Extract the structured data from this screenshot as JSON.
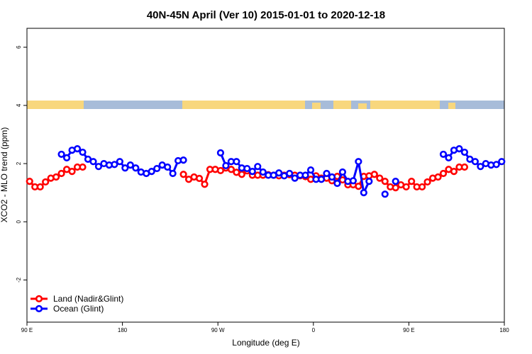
{
  "chart_data": {
    "type": "line",
    "title": "40N-45N April (Ver 10)   2015-01-01 to 2020-12-18",
    "x_label": "Longitude (deg E)",
    "y_label": "XCO2 - MLO trend (ppm)",
    "x": [
      92.5,
      97.5,
      102.5,
      107.5,
      112.5,
      117.5,
      122.5,
      127.5,
      132.5,
      137.5,
      142.5,
      147.5,
      152.5,
      157.5,
      162.5,
      167.5,
      172.5,
      177.5,
      182.5,
      187.5,
      192.5,
      197.5,
      202.5,
      207.5,
      212.5,
      217.5,
      222.5,
      227.5,
      232.5,
      237.5,
      242.5,
      247.5,
      252.5,
      257.5,
      262.5,
      267.5,
      272.5,
      277.5,
      282.5,
      287.5,
      292.5,
      297.5,
      302.5,
      307.5,
      312.5,
      317.5,
      322.5,
      327.5,
      332.5,
      337.5,
      342.5,
      347.5,
      352.5,
      357.5,
      362.5,
      367.5,
      372.5,
      377.5,
      382.5,
      387.5,
      392.5,
      397.5,
      402.5,
      407.5,
      412.5,
      417.5,
      422.5,
      427.5,
      432.5,
      437.5,
      442.5,
      447.5,
      452.5,
      457.5,
      462.5,
      467.5,
      472.5,
      477.5,
      482.5,
      487.5,
      492.5,
      497.5,
      502.5,
      507.5,
      512.5,
      517.5,
      522.5,
      527.5,
      532.5,
      537.5
    ],
    "series": [
      {
        "name": "Land (Nadir&Glint)",
        "color": "#ff0000",
        "values": [
          1.39,
          1.2,
          1.2,
          1.37,
          1.5,
          1.54,
          1.66,
          1.8,
          1.73,
          1.88,
          1.88,
          null,
          null,
          null,
          null,
          null,
          null,
          null,
          null,
          null,
          null,
          null,
          null,
          null,
          null,
          null,
          null,
          null,
          null,
          1.63,
          1.46,
          1.54,
          1.49,
          1.29,
          1.8,
          1.8,
          1.76,
          1.85,
          1.8,
          1.7,
          1.63,
          1.75,
          1.6,
          1.6,
          1.6,
          1.62,
          1.6,
          1.58,
          1.6,
          1.62,
          1.6,
          1.58,
          1.55,
          1.46,
          1.58,
          1.5,
          1.5,
          1.41,
          1.56,
          1.44,
          1.27,
          1.27,
          1.22,
          1.56,
          1.58,
          1.63,
          1.5,
          1.39,
          1.2,
          1.17,
          1.27,
          1.2,
          1.39,
          1.2,
          1.2,
          1.37,
          1.5,
          1.54,
          1.66,
          1.8,
          1.73,
          1.88,
          1.88,
          null,
          null,
          null,
          null,
          null,
          null,
          null
        ]
      },
      {
        "name": "Ocean (Glint)",
        "color": "#0000ff",
        "values": [
          null,
          null,
          null,
          null,
          null,
          null,
          2.32,
          2.2,
          2.46,
          2.51,
          2.39,
          2.15,
          2.07,
          1.9,
          2.0,
          1.95,
          1.97,
          2.07,
          1.85,
          1.95,
          1.85,
          1.71,
          1.66,
          1.73,
          1.83,
          1.95,
          1.88,
          1.66,
          2.1,
          2.12,
          null,
          null,
          null,
          null,
          null,
          null,
          2.37,
          1.93,
          2.07,
          2.07,
          1.85,
          1.83,
          1.73,
          1.9,
          1.71,
          1.6,
          1.6,
          1.68,
          1.58,
          1.66,
          1.5,
          1.6,
          1.6,
          1.78,
          1.46,
          1.46,
          1.66,
          1.54,
          1.32,
          1.71,
          1.39,
          1.41,
          2.07,
          1.0,
          1.39,
          null,
          null,
          0.95,
          null,
          1.39,
          null,
          null,
          null,
          null,
          null,
          null,
          null,
          null,
          2.32,
          2.2,
          2.46,
          2.51,
          2.39,
          2.15,
          2.07,
          1.9,
          2.0,
          1.95,
          1.97,
          2.07
        ]
      }
    ],
    "xlim": [
      90,
      540
    ],
    "xticks": [
      {
        "value": 90,
        "label": "90 E"
      },
      {
        "value": 180,
        "label": "180"
      },
      {
        "value": 270,
        "label": "90 W"
      },
      {
        "value": 360,
        "label": "0"
      },
      {
        "value": 450,
        "label": "90 E"
      },
      {
        "value": 540,
        "label": "180"
      }
    ],
    "ylim": [
      -3.45,
      6.65
    ],
    "yticks": [
      -2,
      0,
      2,
      4,
      6
    ],
    "legend": "bottom-left"
  }
}
